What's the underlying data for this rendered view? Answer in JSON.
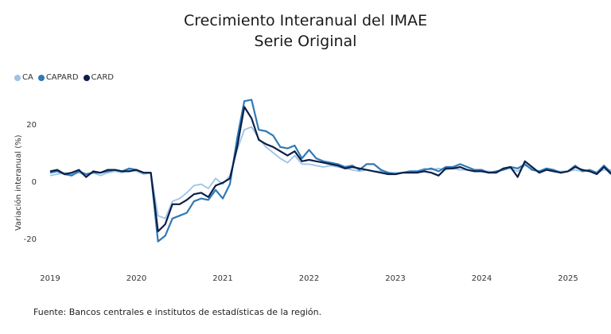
{
  "chart_data": {
    "type": "line",
    "title": "Crecimiento Interanual del IMAE",
    "subtitle": "Serie Original",
    "ylabel": "Variación interanual (%)",
    "xlabel": "",
    "ylim": [
      -25,
      32
    ],
    "yticks": [
      -20,
      0,
      20
    ],
    "xticks": [
      "2019",
      "2020",
      "2021",
      "2022",
      "2023",
      "2024",
      "2025"
    ],
    "x_start": "2019-01",
    "legend_position": "top-left",
    "grid": false,
    "series": [
      {
        "name": "CA",
        "color": "#9cc3e6",
        "values": [
          2.0,
          2.5,
          3.0,
          2.5,
          3.0,
          2.0,
          3.0,
          2.0,
          3.0,
          3.5,
          3.0,
          4.0,
          3.5,
          2.5,
          3.0,
          -12.0,
          -13.0,
          -7.0,
          -6.0,
          -4.0,
          -1.5,
          -1.0,
          -2.5,
          1.0,
          -1.0,
          2.0,
          11.0,
          18.0,
          19.0,
          15.0,
          12.0,
          10.0,
          8.0,
          6.5,
          9.0,
          6.0,
          6.0,
          5.5,
          5.0,
          5.5,
          5.0,
          4.5,
          4.0,
          3.5,
          4.0,
          3.5,
          3.5,
          3.0,
          3.0,
          3.0,
          3.5,
          3.5,
          4.5,
          4.0,
          4.5,
          4.0,
          4.5,
          4.0,
          4.0,
          3.5,
          3.5,
          3.5,
          3.0,
          4.0,
          4.5,
          3.5,
          5.5,
          4.5,
          3.0,
          4.0,
          3.5,
          3.5,
          3.5,
          4.0,
          3.5,
          3.5,
          3.0,
          4.0,
          4.0
        ]
      },
      {
        "name": "CAPARD",
        "color": "#2f79b5",
        "values": [
          3.0,
          3.5,
          2.5,
          2.0,
          3.5,
          2.5,
          3.0,
          3.0,
          3.5,
          4.0,
          3.5,
          4.5,
          4.0,
          3.0,
          3.0,
          -21.0,
          -19.0,
          -13.0,
          -12.0,
          -11.0,
          -7.0,
          -6.0,
          -6.5,
          -3.0,
          -6.0,
          -1.0,
          15.0,
          28.0,
          28.5,
          18.0,
          17.5,
          16.0,
          12.0,
          11.5,
          12.5,
          8.0,
          11.0,
          8.0,
          7.0,
          6.5,
          6.0,
          5.0,
          5.5,
          4.0,
          6.0,
          6.0,
          4.0,
          3.0,
          2.5,
          3.0,
          3.5,
          3.5,
          4.0,
          4.5,
          3.5,
          5.0,
          5.0,
          6.0,
          5.0,
          4.0,
          4.0,
          3.0,
          3.5,
          4.0,
          5.0,
          4.5,
          6.0,
          4.0,
          3.5,
          4.5,
          4.0,
          3.0,
          3.5,
          5.5,
          3.5,
          4.0,
          3.0,
          5.5,
          3.0
        ]
      },
      {
        "name": "CARD",
        "color": "#0c1f48",
        "values": [
          3.5,
          4.0,
          2.5,
          3.0,
          4.0,
          1.5,
          3.5,
          3.0,
          4.0,
          4.0,
          3.5,
          3.5,
          4.0,
          3.0,
          3.0,
          -17.5,
          -15.0,
          -8.0,
          -8.0,
          -6.5,
          -4.5,
          -4.0,
          -5.5,
          -1.5,
          -0.5,
          1.0,
          12.0,
          26.0,
          22.0,
          14.5,
          13.0,
          12.0,
          10.5,
          9.0,
          10.5,
          7.0,
          7.5,
          7.0,
          6.5,
          6.0,
          5.5,
          4.5,
          5.0,
          4.5,
          4.0,
          3.5,
          3.0,
          2.5,
          2.5,
          3.0,
          3.0,
          3.0,
          3.5,
          3.0,
          2.0,
          4.5,
          4.5,
          5.0,
          4.0,
          3.5,
          3.5,
          3.0,
          3.0,
          4.5,
          5.0,
          1.5,
          7.0,
          5.0,
          3.0,
          4.0,
          3.5,
          3.0,
          3.5,
          5.0,
          4.0,
          3.5,
          2.5,
          5.0,
          2.5
        ]
      }
    ]
  },
  "source": "Fuente: Bancos centrales e institutos de estadísticas de la región."
}
